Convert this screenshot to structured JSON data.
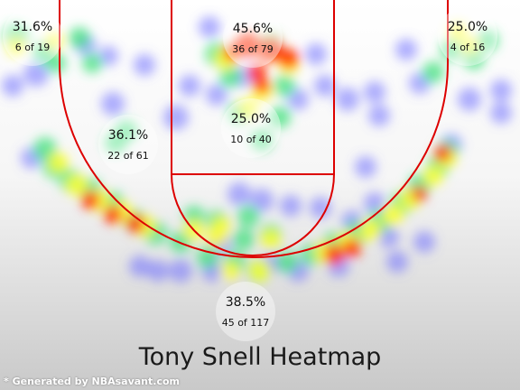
{
  "chart_data": {
    "type": "heatmap",
    "title": "Tony Snell Heatmap",
    "zones": [
      {
        "zone": "left-corner-3",
        "pct": "31.6%",
        "made_of": "6 of 19",
        "made": 6,
        "attempts": 19
      },
      {
        "zone": "restricted-area",
        "pct": "45.6%",
        "made_of": "36 of 79",
        "made": 36,
        "attempts": 79
      },
      {
        "zone": "right-corner-3",
        "pct": "25.0%",
        "made_of": "4 of 16",
        "made": 4,
        "attempts": 16
      },
      {
        "zone": "paint-non-ra",
        "pct": "25.0%",
        "made_of": "10 of 40",
        "made": 10,
        "attempts": 40
      },
      {
        "zone": "left-mid-range",
        "pct": "36.1%",
        "made_of": "22 of 61",
        "made": 22,
        "attempts": 61
      },
      {
        "zone": "above-break-3",
        "pct": "38.5%",
        "made_of": "45 of 117",
        "made": 45,
        "attempts": 117
      }
    ],
    "colors": {
      "low": "#6b6bff",
      "mid_low": "#3fe07a",
      "mid": "#ffff33",
      "high": "#ff2a00",
      "court_lines": "#dd0000"
    }
  },
  "footer": {
    "credit": "* Generated by NBAsavant.com"
  }
}
